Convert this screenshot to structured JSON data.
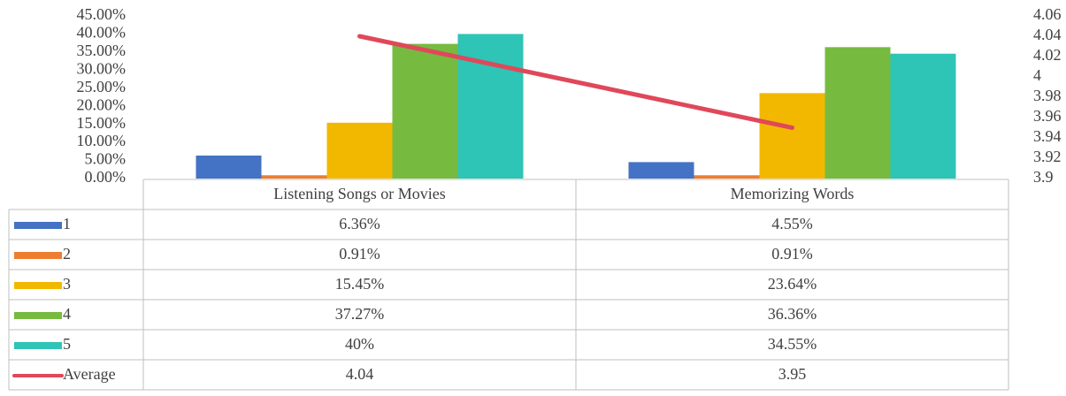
{
  "chart_data": {
    "type": "bar",
    "categories": [
      "Listening Songs or Movies",
      "Memorizing Words"
    ],
    "series": [
      {
        "name": "1",
        "color": "#4472c4",
        "values": [
          6.36,
          4.55
        ],
        "value_labels": [
          "6.36%",
          "4.55%"
        ]
      },
      {
        "name": "2",
        "color": "#ed7d31",
        "values": [
          0.91,
          0.91
        ],
        "value_labels": [
          "0.91%",
          "0.91%"
        ]
      },
      {
        "name": "3",
        "color": "#f2b800",
        "values": [
          15.45,
          23.64
        ],
        "value_labels": [
          "15.45%",
          "23.64%"
        ]
      },
      {
        "name": "4",
        "color": "#76bb40",
        "values": [
          37.27,
          36.36
        ],
        "value_labels": [
          "37.27%",
          "36.36%"
        ]
      },
      {
        "name": "5",
        "color": "#2ec4b6",
        "values": [
          40,
          34.55
        ],
        "value_labels": [
          "40%",
          "34.55%"
        ]
      },
      {
        "name": "Average",
        "color": "#e0485a",
        "type": "line",
        "axis": "y2",
        "values": [
          4.04,
          3.95
        ]
      }
    ],
    "ylim": [
      0,
      45
    ],
    "yticks": [
      {
        "value": 0,
        "label": "0.00%"
      },
      {
        "value": 5,
        "label": "5.00%"
      },
      {
        "value": 10,
        "label": "10.00%"
      },
      {
        "value": 15,
        "label": "15.00%"
      },
      {
        "value": 20,
        "label": "20.00%"
      },
      {
        "value": 25,
        "label": "25.00%"
      },
      {
        "value": 30,
        "label": "30.00%"
      },
      {
        "value": 35,
        "label": "35.00%"
      },
      {
        "value": 40,
        "label": "40.00%"
      },
      {
        "value": 45,
        "label": "45.00%"
      }
    ],
    "y2lim": [
      3.9,
      4.06
    ],
    "y2ticks": [
      3.9,
      3.92,
      3.94,
      3.96,
      3.98,
      4,
      4.02,
      4.04,
      4.06
    ],
    "grid": false
  }
}
